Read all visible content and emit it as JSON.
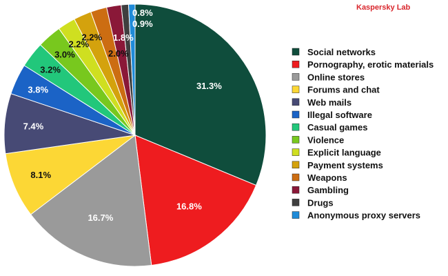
{
  "brand": {
    "text": "Kaspersky Lab",
    "color": "#d9262c"
  },
  "chart_data": {
    "type": "pie",
    "title": "",
    "legend_position": "right",
    "start_angle_deg": 0,
    "direction": "clockwise",
    "slices": [
      {
        "label": "Social networks",
        "value": 31.3,
        "display": "31.3%",
        "color": "#0f4d3c",
        "text_color": "#ffffff"
      },
      {
        "label": "Pornography, erotic materials",
        "value": 16.8,
        "display": "16.8%",
        "color": "#ee1c1f",
        "text_color": "#ffffff"
      },
      {
        "label": "Online stores",
        "value": 16.7,
        "display": "16.7%",
        "color": "#9a9a9a",
        "text_color": "#ffffff"
      },
      {
        "label": "Forums and chat",
        "value": 8.1,
        "display": "8.1%",
        "color": "#fcd735",
        "text_color": "#111111"
      },
      {
        "label": "Web mails",
        "value": 7.4,
        "display": "7.4%",
        "color": "#474a75",
        "text_color": "#ffffff"
      },
      {
        "label": "Illegal software",
        "value": 3.8,
        "display": "3.8%",
        "color": "#1b63c6",
        "text_color": "#ffffff"
      },
      {
        "label": "Casual games",
        "value": 3.2,
        "display": "3.2%",
        "color": "#22c77b",
        "text_color": "#111111"
      },
      {
        "label": "Violence",
        "value": 3.0,
        "display": "3.0%",
        "color": "#78c81e",
        "text_color": "#111111"
      },
      {
        "label": "Explicit language",
        "value": 2.2,
        "display": "2.2%",
        "color": "#cfdf20",
        "text_color": "#111111"
      },
      {
        "label": "Payment systems",
        "value": 2.2,
        "display": "2.2%",
        "color": "#d4a20d",
        "text_color": "#111111"
      },
      {
        "label": "Weapons",
        "value": 2.0,
        "display": "2.0%",
        "color": "#cc6d12",
        "text_color": "#111111"
      },
      {
        "label": "Gambling",
        "value": 1.8,
        "display": "1.8%",
        "color": "#8a1838",
        "text_color": "#ffffff"
      },
      {
        "label": "Drugs",
        "value": 0.9,
        "display": "0.9%",
        "color": "#3f3f3f",
        "text_color": "#ffffff"
      },
      {
        "label": "Anonymous proxy servers",
        "value": 0.8,
        "display": "0.8%",
        "color": "#1f8bd8",
        "text_color": "#ffffff"
      }
    ]
  }
}
